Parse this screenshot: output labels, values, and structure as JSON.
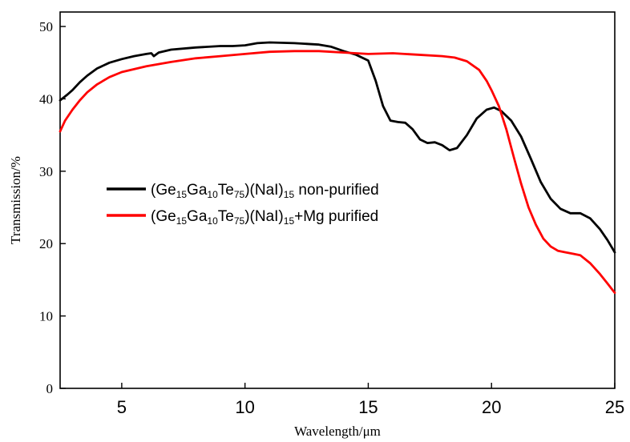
{
  "chart_data": {
    "type": "line",
    "title": "",
    "xlabel": "Wavelength/μm",
    "ylabel": "Transmission/%",
    "xlim": [
      2.5,
      25
    ],
    "ylim": [
      0,
      52
    ],
    "x_ticks": [
      "5",
      "10",
      "15",
      "20",
      "25"
    ],
    "y_ticks": [
      "0",
      "10",
      "20",
      "30",
      "40",
      "50"
    ],
    "grid": false,
    "legend_position": "center-left",
    "series": [
      {
        "name": "(Ge15Ga10Te75)(NaI)15 non-purified",
        "legend_label": {
          "prefix": "(Ge",
          "a": "15",
          "b": "Ga",
          "c": "10",
          "d": "Te",
          "e": "75",
          "f": ")(NaI)",
          "g": "15",
          "h": " non-purified"
        },
        "color": "#000000",
        "points": [
          [
            2.5,
            39.8
          ],
          [
            2.8,
            40.6
          ],
          [
            3.0,
            41.2
          ],
          [
            3.3,
            42.3
          ],
          [
            3.6,
            43.2
          ],
          [
            4.0,
            44.2
          ],
          [
            4.5,
            45.0
          ],
          [
            5.0,
            45.5
          ],
          [
            5.5,
            45.9
          ],
          [
            6.0,
            46.2
          ],
          [
            6.2,
            46.3
          ],
          [
            6.3,
            45.9
          ],
          [
            6.5,
            46.4
          ],
          [
            7.0,
            46.8
          ],
          [
            8.0,
            47.1
          ],
          [
            9.0,
            47.3
          ],
          [
            9.5,
            47.3
          ],
          [
            10.0,
            47.4
          ],
          [
            10.5,
            47.7
          ],
          [
            11.0,
            47.8
          ],
          [
            12.0,
            47.7
          ],
          [
            13.0,
            47.5
          ],
          [
            13.5,
            47.2
          ],
          [
            14.0,
            46.6
          ],
          [
            14.5,
            46.1
          ],
          [
            15.0,
            45.3
          ],
          [
            15.3,
            42.5
          ],
          [
            15.6,
            39.0
          ],
          [
            15.9,
            37.0
          ],
          [
            16.2,
            36.8
          ],
          [
            16.5,
            36.7
          ],
          [
            16.8,
            35.8
          ],
          [
            17.1,
            34.4
          ],
          [
            17.4,
            33.9
          ],
          [
            17.7,
            34.0
          ],
          [
            18.0,
            33.6
          ],
          [
            18.3,
            32.9
          ],
          [
            18.6,
            33.2
          ],
          [
            19.0,
            35.0
          ],
          [
            19.4,
            37.3
          ],
          [
            19.8,
            38.5
          ],
          [
            20.1,
            38.8
          ],
          [
            20.4,
            38.3
          ],
          [
            20.8,
            37.0
          ],
          [
            21.2,
            34.8
          ],
          [
            21.6,
            31.7
          ],
          [
            22.0,
            28.5
          ],
          [
            22.4,
            26.2
          ],
          [
            22.8,
            24.8
          ],
          [
            23.2,
            24.2
          ],
          [
            23.6,
            24.2
          ],
          [
            24.0,
            23.5
          ],
          [
            24.4,
            22.0
          ],
          [
            24.7,
            20.5
          ],
          [
            25.0,
            18.8
          ]
        ]
      },
      {
        "name": "(Ge15Ga10Te75)(NaI)15+Mg purified",
        "legend_label": {
          "prefix": "(Ge",
          "a": "15",
          "b": "Ga",
          "c": "10",
          "d": "Te",
          "e": "75",
          "f": ")(NaI)",
          "g": "15",
          "h": "+Mg purified"
        },
        "color": "#ff0000",
        "points": [
          [
            2.5,
            35.5
          ],
          [
            2.7,
            37.0
          ],
          [
            3.0,
            38.5
          ],
          [
            3.3,
            39.8
          ],
          [
            3.6,
            40.9
          ],
          [
            4.0,
            42.0
          ],
          [
            4.5,
            43.0
          ],
          [
            5.0,
            43.7
          ],
          [
            6.0,
            44.5
          ],
          [
            7.0,
            45.1
          ],
          [
            8.0,
            45.6
          ],
          [
            9.0,
            45.9
          ],
          [
            10.0,
            46.2
          ],
          [
            11.0,
            46.5
          ],
          [
            12.0,
            46.6
          ],
          [
            13.0,
            46.6
          ],
          [
            14.0,
            46.4
          ],
          [
            15.0,
            46.2
          ],
          [
            16.0,
            46.3
          ],
          [
            17.0,
            46.1
          ],
          [
            18.0,
            45.9
          ],
          [
            18.5,
            45.7
          ],
          [
            19.0,
            45.2
          ],
          [
            19.5,
            44.0
          ],
          [
            19.8,
            42.5
          ],
          [
            20.0,
            41.2
          ],
          [
            20.3,
            39.0
          ],
          [
            20.6,
            35.8
          ],
          [
            20.9,
            32.0
          ],
          [
            21.2,
            28.3
          ],
          [
            21.5,
            25.0
          ],
          [
            21.8,
            22.6
          ],
          [
            22.1,
            20.7
          ],
          [
            22.4,
            19.6
          ],
          [
            22.7,
            19.0
          ],
          [
            23.0,
            18.8
          ],
          [
            23.3,
            18.6
          ],
          [
            23.6,
            18.4
          ],
          [
            24.0,
            17.3
          ],
          [
            24.4,
            15.8
          ],
          [
            24.7,
            14.5
          ],
          [
            25.0,
            13.2
          ]
        ]
      }
    ]
  }
}
